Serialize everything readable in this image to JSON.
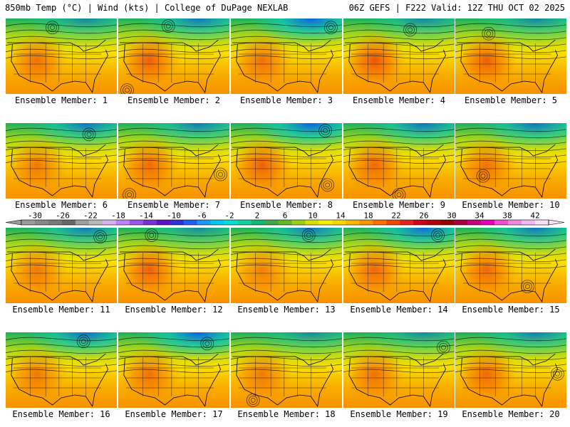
{
  "header": {
    "left": "850mb Temp (°C) | Wind (kts) | College of DuPage NEXLAB",
    "right": "06Z GEFS | F222 Valid: 12Z THU OCT 02 2025"
  },
  "panels": [
    {
      "label": "Ensemble Member: 1",
      "cold": 0.55,
      "warm": 0.55,
      "lows": [
        [
          0.42,
          0.12
        ]
      ]
    },
    {
      "label": "Ensemble Member: 2",
      "cold": 0.75,
      "warm": 0.65,
      "lows": [
        [
          0.45,
          0.1
        ],
        [
          0.08,
          0.95
        ]
      ]
    },
    {
      "label": "Ensemble Member: 3",
      "cold": 1.0,
      "warm": 0.55,
      "lows": [
        [
          0.9,
          0.12
        ]
      ]
    },
    {
      "label": "Ensemble Member: 4",
      "cold": 0.55,
      "warm": 0.7,
      "lows": [
        [
          0.6,
          0.15
        ]
      ]
    },
    {
      "label": "Ensemble Member: 5",
      "cold": 0.55,
      "warm": 0.65,
      "lows": [
        [
          0.3,
          0.2
        ]
      ]
    },
    {
      "label": "Ensemble Member: 6",
      "cold": 0.8,
      "warm": 0.5,
      "lows": [
        [
          0.75,
          0.15
        ]
      ]
    },
    {
      "label": "Ensemble Member: 7",
      "cold": 0.7,
      "warm": 0.6,
      "lows": [
        [
          0.92,
          0.68
        ],
        [
          0.1,
          0.95
        ]
      ]
    },
    {
      "label": "Ensemble Member: 8",
      "cold": 1.0,
      "warm": 0.65,
      "lows": [
        [
          0.85,
          0.1
        ],
        [
          0.87,
          0.82
        ]
      ]
    },
    {
      "label": "Ensemble Member: 9",
      "cold": 0.8,
      "warm": 0.6,
      "lows": [
        [
          0.5,
          0.95
        ]
      ]
    },
    {
      "label": "Ensemble Member: 10",
      "cold": 0.8,
      "warm": 0.55,
      "lows": [
        [
          0.25,
          0.7
        ]
      ]
    },
    {
      "label": "Ensemble Member: 11",
      "cold": 0.7,
      "warm": 0.5,
      "lows": [
        [
          0.85,
          0.12
        ]
      ]
    },
    {
      "label": "Ensemble Member: 12",
      "cold": 0.5,
      "warm": 0.65,
      "lows": [
        [
          0.3,
          0.1
        ]
      ]
    },
    {
      "label": "Ensemble Member: 13",
      "cold": 0.75,
      "warm": 0.45,
      "lows": [
        [
          0.7,
          0.1
        ]
      ]
    },
    {
      "label": "Ensemble Member: 14",
      "cold": 0.9,
      "warm": 0.6,
      "lows": [
        [
          0.85,
          0.1
        ]
      ]
    },
    {
      "label": "Ensemble Member: 15",
      "cold": 0.75,
      "warm": 0.6,
      "lows": [
        [
          0.65,
          0.78
        ]
      ]
    },
    {
      "label": "Ensemble Member: 16",
      "cold": 0.85,
      "warm": 0.5,
      "lows": [
        [
          0.7,
          0.12
        ]
      ]
    },
    {
      "label": "Ensemble Member: 17",
      "cold": 1.0,
      "warm": 0.55,
      "lows": [
        [
          0.8,
          0.15
        ]
      ]
    },
    {
      "label": "Ensemble Member: 18",
      "cold": 0.5,
      "warm": 0.5,
      "lows": [
        [
          0.2,
          0.9
        ]
      ]
    },
    {
      "label": "Ensemble Member: 19",
      "cold": 0.5,
      "warm": 0.55,
      "lows": [
        [
          0.9,
          0.2
        ]
      ]
    },
    {
      "label": "Ensemble Member: 20",
      "cold": 0.65,
      "warm": 0.6,
      "lows": [
        [
          0.92,
          0.55
        ]
      ]
    }
  ],
  "colorbar": {
    "ticks": [
      "-30",
      "-26",
      "-22",
      "-18",
      "-14",
      "-10",
      "-6",
      "-2",
      "2",
      "6",
      "10",
      "14",
      "18",
      "22",
      "26",
      "30",
      "34",
      "38",
      "42"
    ],
    "colors": [
      "#9a9a9a",
      "#888888",
      "#7a7a7a",
      "#686868",
      "#9e9e9e",
      "#b8b8b8",
      "#d8b0f0",
      "#c080ff",
      "#a050f0",
      "#7830d0",
      "#6010c0",
      "#3030d8",
      "#2060f0",
      "#1898f8",
      "#00c8f0",
      "#00e0d0",
      "#10d0a0",
      "#10b870",
      "#40a848",
      "#60b828",
      "#98d018",
      "#d8e000",
      "#f8f000",
      "#f8d800",
      "#f8b800",
      "#f89800",
      "#f87000",
      "#f04800",
      "#e82020",
      "#d00018",
      "#b00010",
      "#900000",
      "#a80040",
      "#c80080",
      "#e800b8",
      "#f050d0",
      "#f088e0",
      "#f0b8f0",
      "#f8e0f8"
    ]
  }
}
